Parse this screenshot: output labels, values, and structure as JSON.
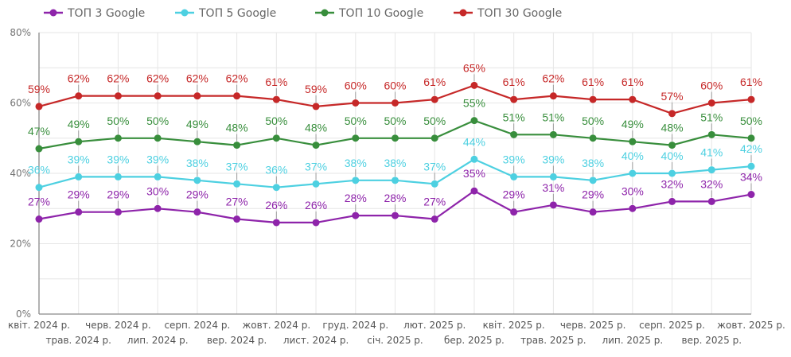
{
  "chart_data": {
    "type": "line",
    "title": "",
    "xlabel": "",
    "ylabel": "",
    "ylim": [
      0,
      80
    ],
    "y_ticks": [
      "0%",
      "20%",
      "40%",
      "60%",
      "80%"
    ],
    "y_tick_values": [
      0,
      20,
      40,
      60,
      80
    ],
    "grid": true,
    "legend_position": "top",
    "categories": [
      "квіт. 2024 р.",
      "трав. 2024 р.",
      "черв. 2024 р.",
      "лип. 2024 р.",
      "серп. 2024 р.",
      "вер. 2024 р.",
      "жовт. 2024 р.",
      "лист. 2024 р.",
      "груд. 2024 р.",
      "січ. 2025 р.",
      "лют. 2025 р.",
      "бер. 2025 р.",
      "квіт. 2025 р.",
      "трав. 2025 р.",
      "черв. 2025 р.",
      "лип. 2025 р.",
      "серп. 2025 р.",
      "вер. 2025 р.",
      "жовт. 2025 р."
    ],
    "series": [
      {
        "name": "ТОП 3 Google",
        "color": "#8e24aa",
        "values": [
          27,
          29,
          29,
          30,
          29,
          27,
          26,
          26,
          28,
          28,
          27,
          35,
          29,
          31,
          29,
          30,
          32,
          32,
          34
        ]
      },
      {
        "name": "ТОП 5 Google",
        "color": "#4dd0e1",
        "values": [
          36,
          39,
          39,
          39,
          38,
          37,
          36,
          37,
          38,
          38,
          37,
          44,
          39,
          39,
          38,
          40,
          40,
          41,
          42
        ]
      },
      {
        "name": "ТОП 10 Google",
        "color": "#388e3c",
        "values": [
          47,
          49,
          50,
          50,
          49,
          48,
          50,
          48,
          50,
          50,
          50,
          55,
          51,
          51,
          50,
          49,
          48,
          51,
          50
        ]
      },
      {
        "name": "ТОП 30 Google",
        "color": "#c62828",
        "values": [
          59,
          62,
          62,
          62,
          62,
          62,
          61,
          59,
          60,
          60,
          61,
          65,
          61,
          62,
          61,
          61,
          57,
          60,
          61
        ]
      }
    ],
    "value_suffix": "%"
  }
}
